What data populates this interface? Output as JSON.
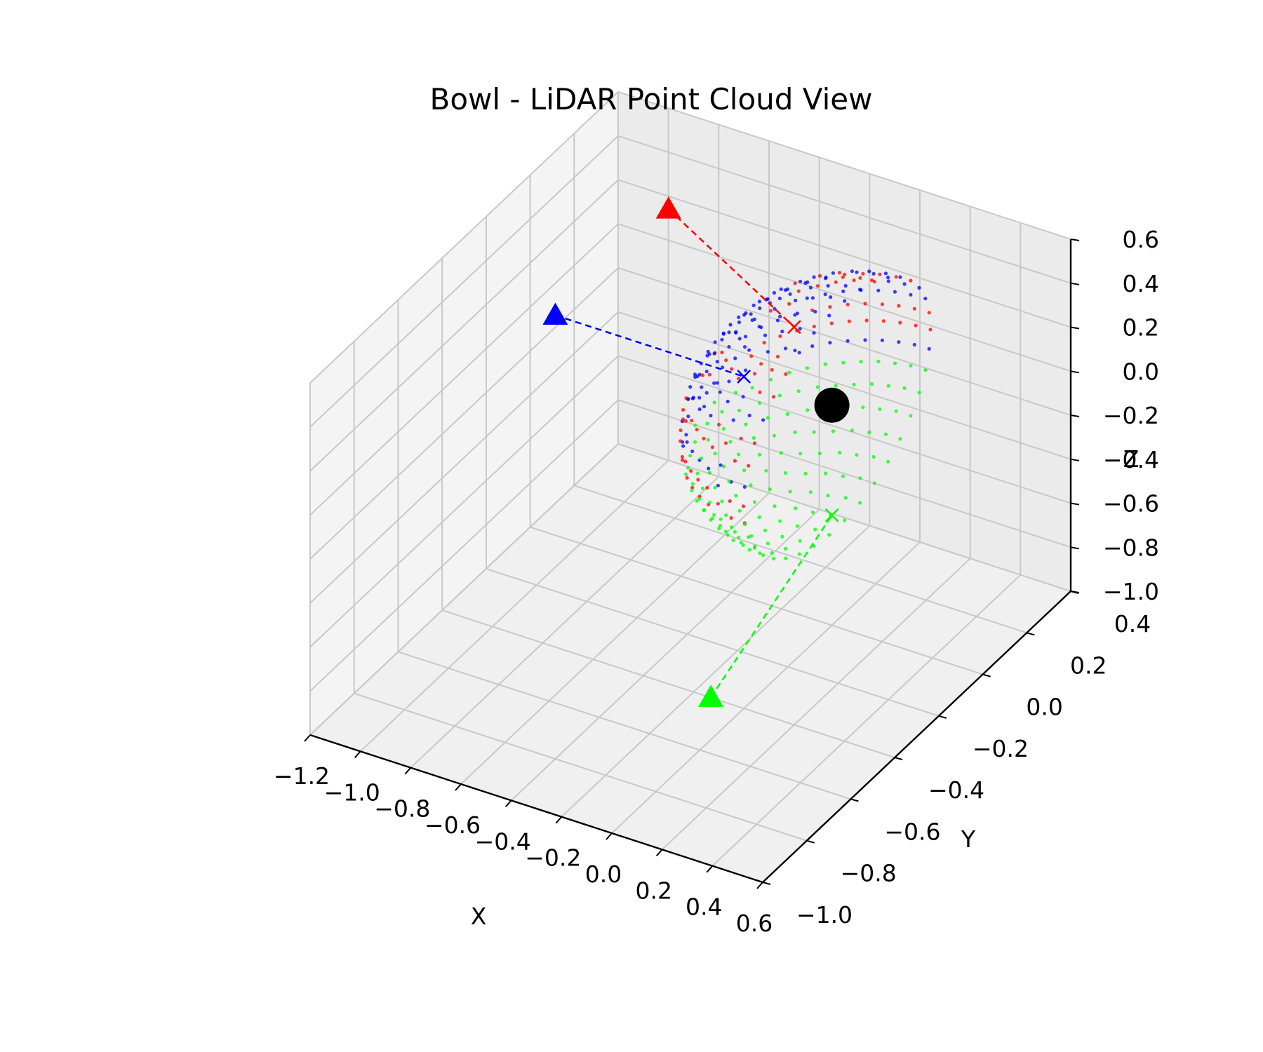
{
  "chart_data": {
    "type": "scatter",
    "title": "Bowl - LiDAR Point Cloud View",
    "xlabel": "X",
    "ylabel": "Y",
    "zlabel": "Z",
    "xticks": [
      "−1.2",
      "−1.0",
      "−0.8",
      "−0.6",
      "−0.4",
      "−0.2",
      "0.0",
      "0.2",
      "0.4",
      "0.6"
    ],
    "yticks": [
      "−1.0",
      "−0.8",
      "−0.6",
      "−0.4",
      "−0.2",
      "0.0",
      "0.2",
      "0.4"
    ],
    "zticks": [
      "−1.0",
      "−0.8",
      "−0.6",
      "−0.4",
      "−0.2",
      "0.0",
      "0.2",
      "0.4",
      "0.6"
    ],
    "xlim": [
      -1.2,
      0.6
    ],
    "ylim": [
      -1.0,
      0.4
    ],
    "zlim": [
      -1.0,
      0.6
    ],
    "grid": true,
    "colors": {
      "red": "#ff0000",
      "blue": "#0000ff",
      "green": "#00ff00",
      "center": "#000000",
      "pane": "#f2f2f2",
      "grid": "#c8c8c8"
    },
    "series": [
      {
        "color": "red",
        "marker": "point",
        "sensor": [
          -0.65,
          0.0,
          0.65
        ],
        "hit": [
          -0.15,
          0.0,
          0.3
        ]
      },
      {
        "color": "blue",
        "marker": "point",
        "sensor": [
          -1.1,
          0.0,
          0.0
        ],
        "hit": [
          -0.35,
          0.0,
          0.0
        ]
      },
      {
        "color": "green",
        "marker": "point",
        "sensor": [
          0.35,
          -0.95,
          -0.3
        ],
        "hit": [
          0.0,
          0.0,
          -0.5
        ]
      }
    ],
    "center": [
      0.0,
      0.0,
      0.0
    ]
  }
}
